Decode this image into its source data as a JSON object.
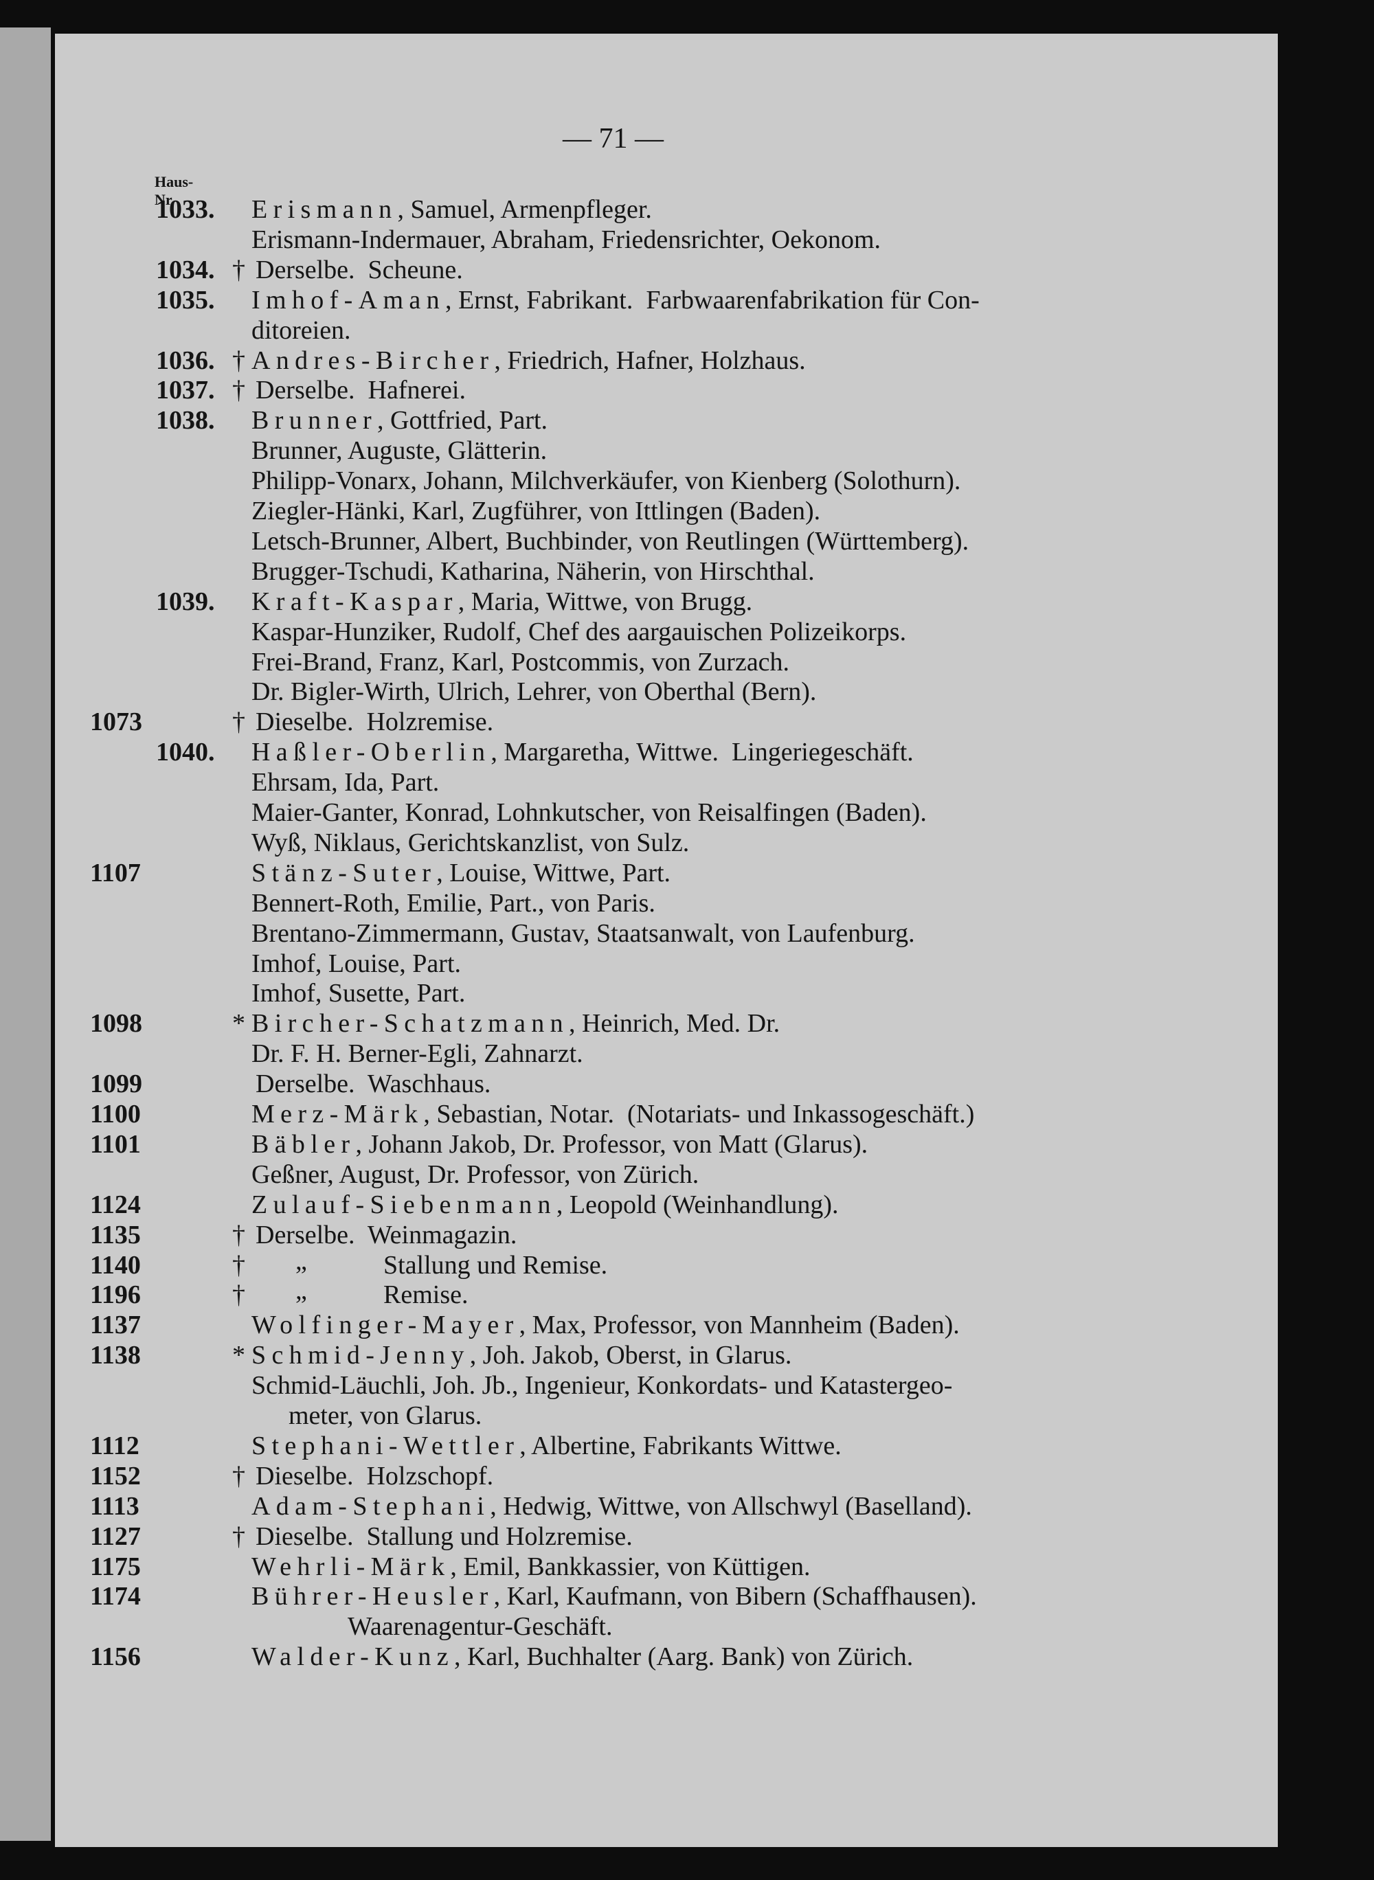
{
  "header": {
    "page_number": "— 71 —",
    "column_label": [
      "Haus-",
      "Nr."
    ]
  },
  "rows": [
    {
      "old_number": "1033.",
      "name": "Erismann",
      "text": ", Samuel, Armenpfleger."
    },
    {
      "text": "Erismann-Indermauer, Abraham, Friedensrichter, Oekonom."
    },
    {
      "old_number": "1034.",
      "mark": "†",
      "text": "Derselbe.  Scheune."
    },
    {
      "old_number": "1035.",
      "name": "Imhof-Aman",
      "text": ", Ernst, Fabrikant.  Farbwaarenfabrikation für Con-"
    },
    {
      "cont": "ditoreien."
    },
    {
      "old_number": "1036.",
      "mark": "†",
      "name": "Andres-Bircher",
      "text": ", Friedrich, Hafner, Holzhaus."
    },
    {
      "old_number": "1037.",
      "mark": "†",
      "text": "Derselbe.  Hafnerei."
    },
    {
      "old_number": "1038.",
      "name": "Brunner",
      "text": ", Gottfried, Part."
    },
    {
      "text": "Brunner, Auguste, Glätterin."
    },
    {
      "text": "Philipp-Vonarx, Johann, Milchverkäufer, von Kienberg (Solothurn)."
    },
    {
      "text": "Ziegler-Hänki, Karl, Zugführer, von Ittlingen (Baden)."
    },
    {
      "text": "Letsch-Brunner, Albert, Buchbinder, von Reutlingen (Württemberg)."
    },
    {
      "text": "Brugger-Tschudi, Katharina, Näherin, von Hirschthal."
    },
    {
      "old_number": "1039.",
      "name": "Kraft-Kaspar",
      "text": ", Maria, Wittwe, von Brugg."
    },
    {
      "text": "Kaspar-Hunziker, Rudolf, Chef des aargauischen Polizeikorps."
    },
    {
      "text": "Frei-Brand, Franz, Karl, Postcommis, von Zurzach."
    },
    {
      "text": "Dr. Bigler-Wirth, Ulrich, Lehrer, von Oberthal (Bern)."
    },
    {
      "number": "1073",
      "mark": "†",
      "text": "Dieselbe.  Holzremise."
    },
    {
      "old_number": "1040.",
      "name": "Haßler-Oberlin",
      "text": ", Margaretha, Wittwe.  Lingeriegeschäft."
    },
    {
      "text": "Ehrsam, Ida, Part."
    },
    {
      "text": "Maier-Ganter, Konrad, Lohnkutscher, von Reisalfingen (Baden)."
    },
    {
      "text": "Wyß, Niklaus, Gerichtskanzlist, von Sulz."
    },
    {
      "number": "1107",
      "name": "Stänz-Suter",
      "text": ", Louise, Wittwe, Part."
    },
    {
      "text": "Bennert-Roth, Emilie, Part., von Paris."
    },
    {
      "text": "Brentano-Zimmermann, Gustav, Staatsanwalt, von Laufenburg."
    },
    {
      "text": "Imhof, Louise, Part."
    },
    {
      "text": "Imhof, Susette, Part."
    },
    {
      "number": "1098",
      "mark": "*",
      "name": "Bircher-Schatzmann",
      "text": ", Heinrich, Med. Dr."
    },
    {
      "text": "Dr. F. H. Berner-Egli, Zahnarzt."
    },
    {
      "number": "1099",
      "text": "Derselbe.  Waschhaus."
    },
    {
      "number": "1100",
      "name": "Merz-Märk",
      "text": ", Sebastian, Notar.  (Notariats- und Inkassogeschäft.)"
    },
    {
      "number": "1101",
      "name": "Bäbler",
      "text": ", Johann Jakob, Dr. Professor, von Matt (Glarus)."
    },
    {
      "text": "Geßner, August, Dr. Professor, von Zürich."
    },
    {
      "number": "1124",
      "name": "Zulauf-Siebenmann",
      "text": ", Leopold (Weinhandlung)."
    },
    {
      "number": "1135",
      "mark": "†",
      "text": "Derselbe.  Weinmagazin."
    },
    {
      "number": "1140",
      "mark": "†",
      "ditto": "„",
      "text": "Stallung und Remise."
    },
    {
      "number": "1196",
      "mark": "†",
      "ditto": "„",
      "text": "Remise."
    },
    {
      "number": "1137",
      "name": "Wolfinger-Mayer",
      "text": ", Max, Professor, von Mannheim (Baden)."
    },
    {
      "number": "1138",
      "mark": "*",
      "name": "Schmid-Jenny",
      "text": ", Joh. Jakob, Oberst, in Glarus."
    },
    {
      "text": "Schmid-Läuchli, Joh. Jb., Ingenieur, Konkordats- und Katastergeo-"
    },
    {
      "cont": "meter, von Glarus."
    },
    {
      "number": "1112",
      "name": "Stephani-Wettler",
      "text": ", Albertine, Fabrikants Wittwe."
    },
    {
      "number": "1152",
      "mark": "†",
      "text": "Dieselbe.  Holzschopf."
    },
    {
      "number": "1113",
      "name": "Adam-Stephani",
      "text": ", Hedwig, Wittwe, von Allschwyl (Baselland)."
    },
    {
      "number": "1127",
      "mark": "†",
      "text": "Dieselbe.  Stallung und Holzremise."
    },
    {
      "number": "1175",
      "name": "Wehrli-Märk",
      "text": ", Emil, Bankkassier, von Küttigen."
    },
    {
      "number": "1174",
      "name": "Bührer-Heusler",
      "text": ", Karl, Kaufmann, von Bibern (Schaffhausen)."
    },
    {
      "cont": "Waarenagentur-Geschäft."
    },
    {
      "number": "1156",
      "name": "Walder-Kunz",
      "text": ", Karl, Buchhalter (Aarg. Bank) von Zürich."
    }
  ]
}
